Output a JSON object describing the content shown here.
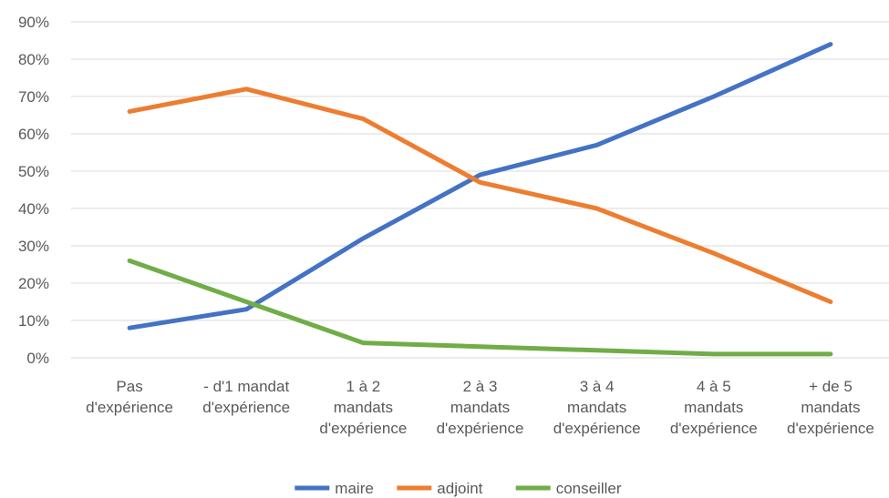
{
  "chart_data": {
    "type": "line",
    "categories": [
      [
        "Pas",
        "d'expérience"
      ],
      [
        "- d'1 mandat",
        "d'expérience"
      ],
      [
        "1 à 2",
        "mandats",
        "d'expérience"
      ],
      [
        "2 à 3",
        "mandats",
        "d'expérience"
      ],
      [
        "3 à 4",
        "mandats",
        "d'expérience"
      ],
      [
        "4 à 5",
        "mandats",
        "d'expérience"
      ],
      [
        "+ de 5",
        "mandats",
        "d'expérience"
      ]
    ],
    "series": [
      {
        "name": "maire",
        "color": "#4472c4",
        "values": [
          8,
          13,
          32,
          49,
          57,
          70,
          84
        ]
      },
      {
        "name": "adjoint",
        "color": "#ed7d31",
        "values": [
          66,
          72,
          64,
          47,
          40,
          28,
          15
        ]
      },
      {
        "name": "conseiller",
        "color": "#70ad47",
        "values": [
          26,
          15,
          4,
          3,
          2,
          1,
          1
        ]
      }
    ],
    "ylim": [
      0,
      90
    ],
    "yticks": [
      "0%",
      "10%",
      "20%",
      "30%",
      "40%",
      "50%",
      "60%",
      "70%",
      "80%",
      "90%"
    ],
    "grid": true,
    "legend": "bottom",
    "title": "",
    "xlabel": "",
    "ylabel": ""
  }
}
